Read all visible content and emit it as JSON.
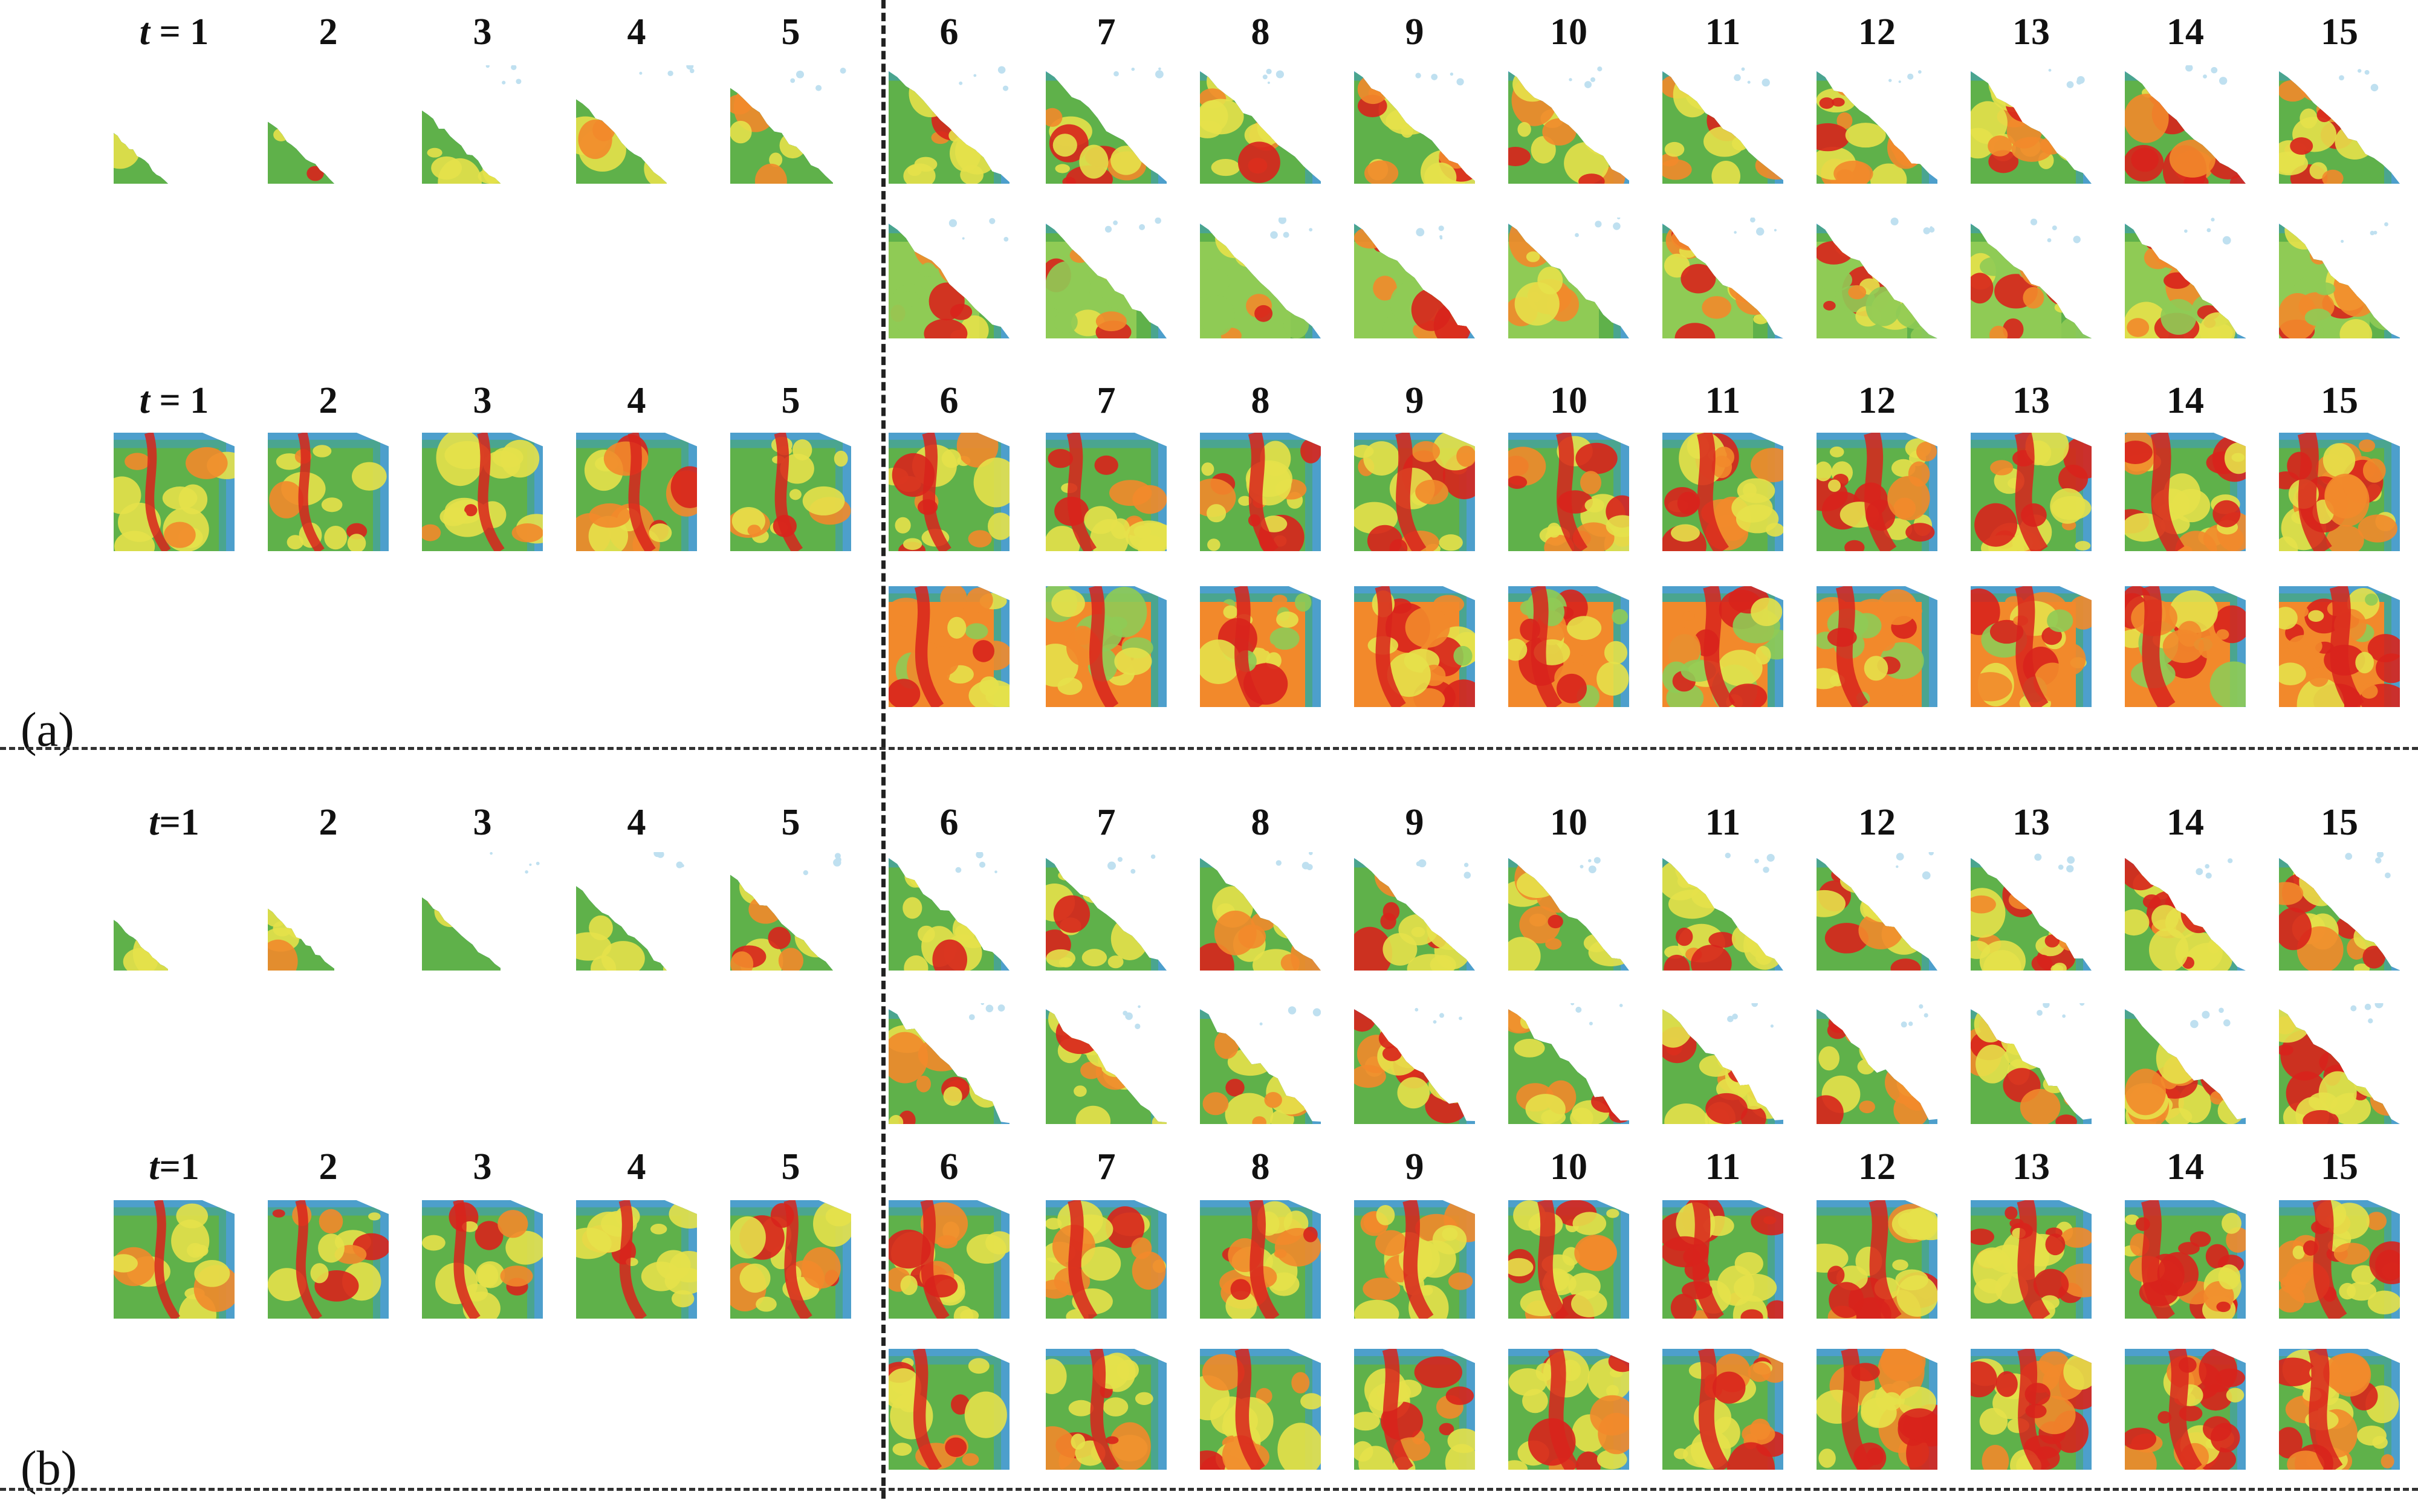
{
  "panels": [
    {
      "label": "(a)",
      "groups": [
        {
          "time_labels": [
            "t = 1",
            "2",
            "3",
            "4",
            "5",
            "6",
            "7",
            "8",
            "9",
            "10",
            "11",
            "12",
            "13",
            "14",
            "15"
          ],
          "rows": [
            {
              "start_step": 1,
              "shape": "triangle"
            },
            {
              "start_step": 6,
              "shape": "smooth-triangle"
            }
          ]
        },
        {
          "time_labels": [
            "t = 1",
            "2",
            "3",
            "4",
            "5",
            "6",
            "7",
            "8",
            "9",
            "10",
            "11",
            "12",
            "13",
            "14",
            "15"
          ],
          "rows": [
            {
              "start_step": 1,
              "shape": "square"
            },
            {
              "start_step": 6,
              "shape": "smooth-square"
            }
          ]
        }
      ]
    },
    {
      "label": "(b)",
      "groups": [
        {
          "time_labels": [
            "t=1",
            "2",
            "3",
            "4",
            "5",
            "6",
            "7",
            "8",
            "9",
            "10",
            "11",
            "12",
            "13",
            "14",
            "15"
          ],
          "rows": [
            {
              "start_step": 1,
              "shape": "triangle"
            },
            {
              "start_step": 6,
              "shape": "noisy-triangle"
            }
          ]
        },
        {
          "time_labels": [
            "t=1",
            "2",
            "3",
            "4",
            "5",
            "6",
            "7",
            "8",
            "9",
            "10",
            "11",
            "12",
            "13",
            "14",
            "15"
          ],
          "rows": [
            {
              "start_step": 1,
              "shape": "square"
            },
            {
              "start_step": 6,
              "shape": "noisy-square"
            }
          ]
        }
      ]
    }
  ],
  "colors": {
    "red": "#d8231c",
    "orange": "#f2892b",
    "yellow": "#e6e14a",
    "green": "#5fb14a",
    "light_green": "#8fcb55",
    "teal": "#4aa58f",
    "blue": "#4d9fcc",
    "pale_blue": "#bfe0f0"
  }
}
